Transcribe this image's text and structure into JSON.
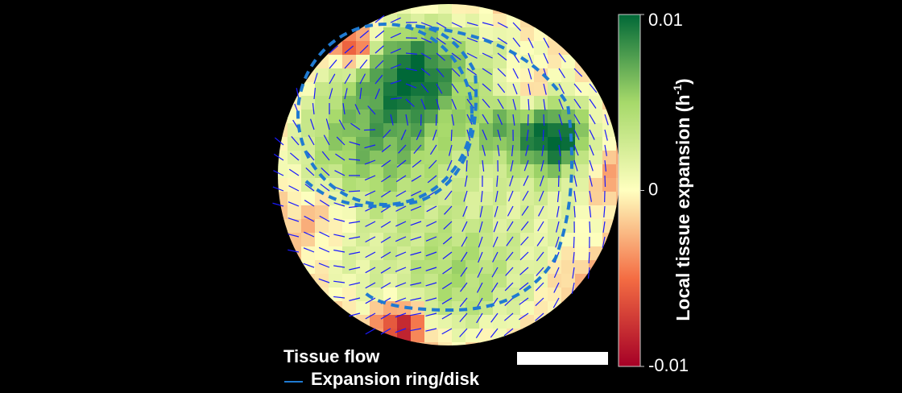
{
  "colorbar": {
    "label": "Local tissue expansion (h",
    "label_sup": "-1",
    "label_end": ")",
    "lim": [
      -0.01,
      0.01
    ],
    "ticks": [
      0.01,
      0,
      -0.01
    ]
  },
  "legend": {
    "title": "Tissue flow",
    "ring": "Expansion ring/disk"
  }
}
